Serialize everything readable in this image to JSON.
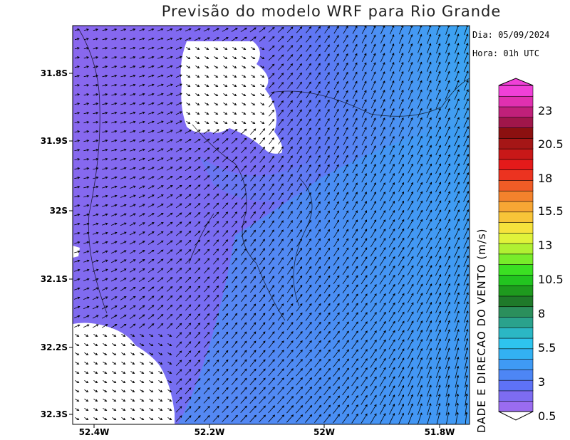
{
  "title": "Previsão do modelo WRF para Rio Grande",
  "info": {
    "date": "Dia: 05/09/2024",
    "time": "Hora: 01h UTC"
  },
  "axes": {
    "lat_ticks": [
      "31.8S",
      "31.9S",
      "32S",
      "32.1S",
      "32.2S",
      "32.3S"
    ],
    "lon_ticks": [
      "52.4W",
      "52.2W",
      "52W",
      "51.8W"
    ]
  },
  "colorbar": {
    "label": "DADE E DIRECAO DO VENTO (m/s)",
    "tick_labels": [
      "0.5",
      "3",
      "5.5",
      "8",
      "10.5",
      "13",
      "15.5",
      "18",
      "20.5",
      "23"
    ],
    "range": [
      0.5,
      24.5
    ],
    "colors": [
      "#9a6cf0",
      "#7d6cf2",
      "#5e72f6",
      "#4d86f5",
      "#3f9af4",
      "#33b1f2",
      "#2ec4ee",
      "#2bb7c4",
      "#2aa28c",
      "#2b8f5c",
      "#1f7a2a",
      "#1e9a1e",
      "#22c41f",
      "#3be022",
      "#78ec2a",
      "#b0f032",
      "#e0f23a",
      "#f6e23c",
      "#f8c438",
      "#f7a634",
      "#f4822c",
      "#f05c26",
      "#ec3320",
      "#e41a1a",
      "#c81818",
      "#a51616",
      "#8c1010",
      "#a0164a",
      "#c0207a",
      "#e030b0",
      "#f040d8"
    ]
  },
  "legend_colors": {
    "calm": "#8866ee",
    "moderate": "#3aa6f2",
    "land_masked": "#ffffff",
    "arrows": "#000000"
  }
}
